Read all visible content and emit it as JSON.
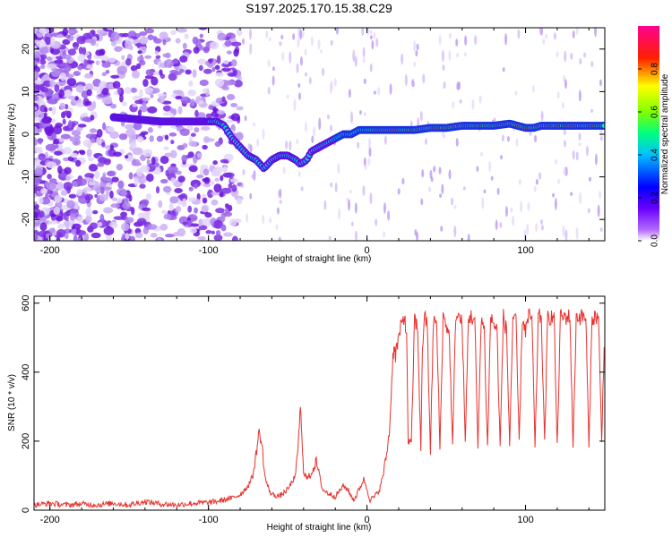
{
  "title": "S197.2025.170.15.38.C29",
  "colors": {
    "snr_line": "#e8322e",
    "spectrogram_low": "#d9c8f5",
    "spectrogram_mid": "#7a1fe0",
    "colorbar_stops": [
      "#8000ff",
      "#0000ff",
      "#00ffff",
      "#00ff00",
      "#ffff00",
      "#ff0000",
      "#ff0080"
    ]
  },
  "chart_data": [
    {
      "type": "heatmap",
      "name": "spectrogram",
      "xlabel": "Height of straight line (km)",
      "ylabel": "Frequency (Hz)",
      "xlim": [
        -210,
        150
      ],
      "ylim": [
        -25,
        25
      ],
      "xticks": [
        -200,
        -100,
        0,
        100
      ],
      "xtick_labels": [
        "-200",
        "-100",
        "0",
        "100"
      ],
      "yticks": [
        -20,
        -10,
        0,
        10,
        20
      ],
      "ytick_labels": [
        "-20",
        "-10",
        "0",
        "10",
        "20"
      ],
      "ridge": {
        "x": [
          -160,
          -130,
          -110,
          -100,
          -95,
          -90,
          -85,
          -80,
          -75,
          -70,
          -65,
          -60,
          -55,
          -50,
          -45,
          -42,
          -38,
          -35,
          -30,
          -25,
          -20,
          -15,
          -10,
          -5,
          0,
          10,
          20,
          30,
          40,
          50,
          60,
          70,
          80,
          90,
          95,
          100,
          105,
          110,
          120,
          130,
          140,
          150
        ],
        "y": [
          4,
          3,
          3,
          3,
          3,
          2,
          -1,
          -3,
          -5,
          -6,
          -8,
          -6,
          -5,
          -5,
          -6,
          -7,
          -6,
          -4,
          -3,
          -2,
          -1,
          0,
          0,
          1,
          1,
          1,
          1,
          1,
          1.5,
          1.5,
          2,
          2,
          2,
          2.5,
          2,
          1.5,
          1.5,
          2,
          2,
          2,
          2,
          2
        ]
      },
      "colorbar": {
        "label": "Normalized spectral amplitude",
        "range": [
          0,
          1
        ],
        "ticks": [
          0.0,
          0.2,
          0.4,
          0.6,
          0.8
        ],
        "tick_labels": [
          "0.0",
          "0.2",
          "0.4",
          "0.6",
          "0.8"
        ]
      }
    },
    {
      "type": "line",
      "name": "snr",
      "xlabel": "Height of straight line (km)",
      "ylabel": "SNR (10 * v/v)",
      "xlim": [
        -210,
        150
      ],
      "ylim": [
        0,
        620
      ],
      "xticks": [
        -200,
        -100,
        0,
        100
      ],
      "xtick_labels": [
        "-200",
        "-100",
        "0",
        "100"
      ],
      "yticks": [
        0,
        200,
        400,
        600
      ],
      "ytick_labels": [
        "0",
        "200",
        "400",
        "600"
      ],
      "series": [
        {
          "x": [
            -210,
            -200,
            -190,
            -180,
            -170,
            -160,
            -150,
            -140,
            -130,
            -120,
            -110,
            -100,
            -95,
            -90,
            -85,
            -80,
            -75,
            -72,
            -70,
            -68,
            -66,
            -65,
            -64,
            -62,
            -60,
            -55,
            -50,
            -45,
            -43,
            -42,
            -41,
            -40,
            -38,
            -35,
            -32,
            -30,
            -28,
            -25,
            -20,
            -15,
            -12,
            -10,
            -8,
            -5,
            -2,
            0,
            2,
            5,
            8,
            10,
            12,
            14,
            15,
            16,
            17,
            18,
            20,
            22,
            24,
            25,
            26,
            28,
            30,
            32,
            34,
            35,
            36,
            38,
            40,
            42,
            44,
            46,
            48,
            50,
            52,
            54,
            56,
            58,
            60,
            62,
            64,
            66,
            68,
            70,
            72,
            74,
            76,
            78,
            80,
            82,
            84,
            86,
            88,
            90,
            92,
            94,
            96,
            98,
            100,
            102,
            104,
            106,
            108,
            110,
            112,
            114,
            116,
            118,
            120,
            122,
            124,
            126,
            128,
            130,
            132,
            134,
            136,
            138,
            140,
            142,
            144,
            146,
            148,
            150
          ],
          "y": [
            15,
            20,
            15,
            18,
            15,
            20,
            15,
            25,
            18,
            15,
            20,
            22,
            25,
            30,
            35,
            45,
            70,
            100,
            160,
            230,
            180,
            120,
            90,
            60,
            45,
            40,
            60,
            100,
            220,
            300,
            200,
            120,
            90,
            110,
            140,
            100,
            60,
            50,
            40,
            70,
            60,
            40,
            30,
            60,
            90,
            60,
            30,
            40,
            60,
            100,
            150,
            220,
            300,
            420,
            480,
            450,
            500,
            540,
            560,
            500,
            200,
            190,
            560,
            520,
            180,
            460,
            560,
            540,
            170,
            560,
            530,
            180,
            560,
            540,
            500,
            180,
            570,
            560,
            540,
            190,
            560,
            560,
            550,
            180,
            560,
            520,
            180,
            560,
            540,
            520,
            180,
            560,
            520,
            190,
            560,
            540,
            200,
            560,
            520,
            560,
            560,
            180,
            560,
            560,
            190,
            560,
            560,
            560,
            180,
            560,
            560,
            560,
            560,
            180,
            560,
            560,
            560,
            560,
            180,
            560,
            560,
            560,
            200,
            560
          ]
        }
      ]
    }
  ]
}
